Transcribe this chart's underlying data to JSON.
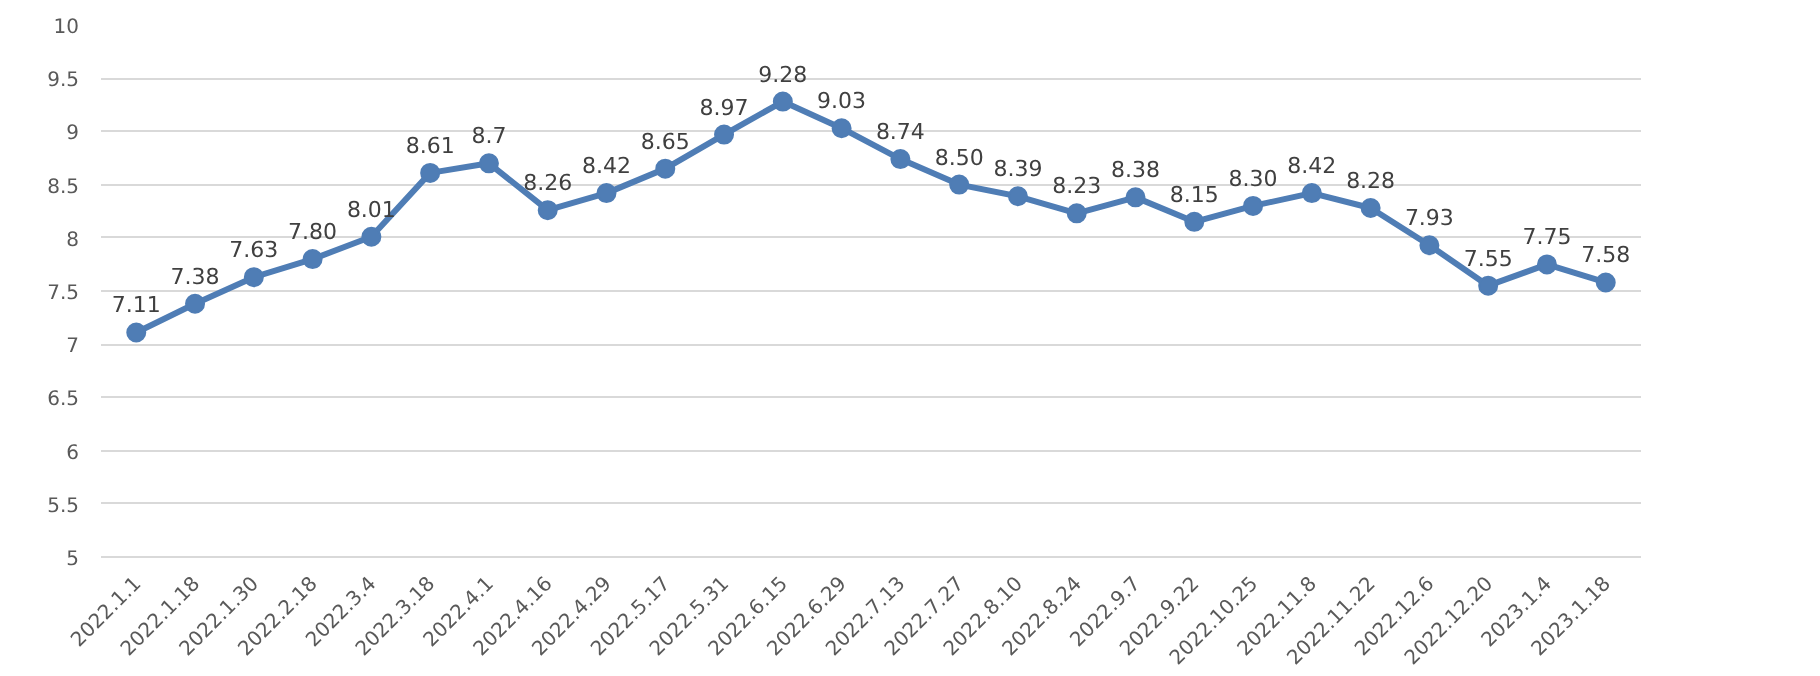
{
  "chart_data": {
    "type": "line",
    "categories": [
      "2022.1.1",
      "2022.1.18",
      "2022.1.30",
      "2022.2.18",
      "2022.3.4",
      "2022.3.18",
      "2022.4.1",
      "2022.4.16",
      "2022.4.29",
      "2022.5.17",
      "2022.5.31",
      "2022.6.15",
      "2022.6.29",
      "2022.7.13",
      "2022.7.27",
      "2022.8.10",
      "2022.8.24",
      "2022.9.7",
      "2022.9.22",
      "2022.10.25",
      "2022.11.8",
      "2022.11.22",
      "2022.12.6",
      "2022.12.20",
      "2023.1.4",
      "2023.1.18"
    ],
    "series": [
      {
        "color": "#4f7db5",
        "values": [
          7.11,
          7.38,
          7.63,
          7.8,
          8.01,
          8.61,
          8.7,
          8.26,
          8.42,
          8.65,
          8.97,
          9.28,
          9.03,
          8.74,
          8.5,
          8.39,
          8.23,
          8.38,
          8.15,
          8.3,
          8.42,
          8.28,
          7.93,
          7.55,
          7.75,
          7.58
        ],
        "value_labels": [
          "7.11",
          "7.38",
          "7.63",
          "7.80",
          "8.01",
          "8.61",
          "8.7",
          "8.26",
          "8.42",
          "8.65",
          "8.97",
          "9.28",
          "9.03",
          "8.74",
          "8.50",
          "8.39",
          "8.23",
          "8.38",
          "8.15",
          "8.30",
          "8.42",
          "8.28",
          "7.93",
          "7.55",
          "7.75",
          "7.58"
        ]
      }
    ],
    "ylim": [
      5,
      10
    ],
    "yticks": [
      5,
      5.5,
      6,
      6.5,
      7,
      7.5,
      8,
      8.5,
      9,
      9.5,
      10
    ],
    "grid": "y",
    "marker": "circle",
    "line_style": "solid"
  }
}
